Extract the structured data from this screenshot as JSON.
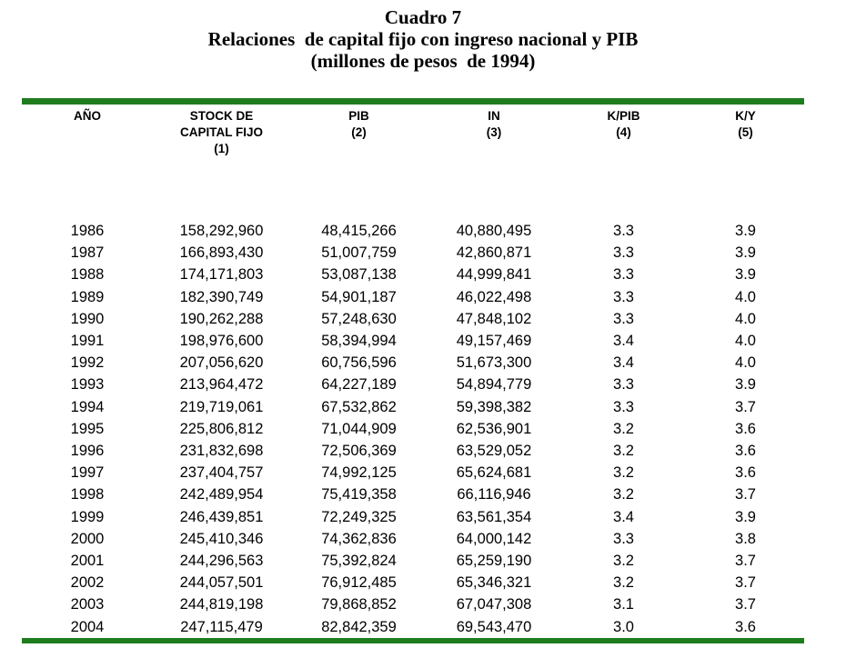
{
  "colors": {
    "rule_green": "#1e7c1e",
    "text": "#000000",
    "background": "#ffffff"
  },
  "title": {
    "caption": "Cuadro 7",
    "main": "Relaciones  de capital fijo con ingreso nacional y PIB",
    "subtitle": "(millones de pesos  de 1994)"
  },
  "table": {
    "columns": [
      {
        "key": "ano",
        "lines": [
          "AÑO"
        ]
      },
      {
        "key": "stock",
        "lines": [
          "STOCK DE",
          "CAPITAL FIJO",
          "(1)"
        ]
      },
      {
        "key": "pib",
        "lines": [
          "PIB",
          "(2)"
        ]
      },
      {
        "key": "in",
        "lines": [
          "IN",
          "(3)"
        ]
      },
      {
        "key": "kpib",
        "lines": [
          "K/PIB",
          "(4)"
        ]
      },
      {
        "key": "ky",
        "lines": [
          "K/Y",
          "(5)"
        ]
      }
    ],
    "rows": [
      [
        "1986",
        "158,292,960",
        "48,415,266",
        "40,880,495",
        "3.3",
        "3.9"
      ],
      [
        "1987",
        "166,893,430",
        "51,007,759",
        "42,860,871",
        "3.3",
        "3.9"
      ],
      [
        "1988",
        "174,171,803",
        "53,087,138",
        "44,999,841",
        "3.3",
        "3.9"
      ],
      [
        "1989",
        "182,390,749",
        "54,901,187",
        "46,022,498",
        "3.3",
        "4.0"
      ],
      [
        "1990",
        "190,262,288",
        "57,248,630",
        "47,848,102",
        "3.3",
        "4.0"
      ],
      [
        "1991",
        "198,976,600",
        "58,394,994",
        "49,157,469",
        "3.4",
        "4.0"
      ],
      [
        "1992",
        "207,056,620",
        "60,756,596",
        "51,673,300",
        "3.4",
        "4.0"
      ],
      [
        "1993",
        "213,964,472",
        "64,227,189",
        "54,894,779",
        "3.3",
        "3.9"
      ],
      [
        "1994",
        "219,719,061",
        "67,532,862",
        "59,398,382",
        "3.3",
        "3.7"
      ],
      [
        "1995",
        "225,806,812",
        "71,044,909",
        "62,536,901",
        "3.2",
        "3.6"
      ],
      [
        "1996",
        "231,832,698",
        "72,506,369",
        "63,529,052",
        "3.2",
        "3.6"
      ],
      [
        "1997",
        "237,404,757",
        "74,992,125",
        "65,624,681",
        "3.2",
        "3.6"
      ],
      [
        "1998",
        "242,489,954",
        "75,419,358",
        "66,116,946",
        "3.2",
        "3.7"
      ],
      [
        "1999",
        "246,439,851",
        "72,249,325",
        "63,561,354",
        "3.4",
        "3.9"
      ],
      [
        "2000",
        "245,410,346",
        "74,362,836",
        "64,000,142",
        "3.3",
        "3.8"
      ],
      [
        "2001",
        "244,296,563",
        "75,392,824",
        "65,259,190",
        "3.2",
        "3.7"
      ],
      [
        "2002",
        "244,057,501",
        "76,912,485",
        "65,346,321",
        "3.2",
        "3.7"
      ],
      [
        "2003",
        "244,819,198",
        "79,868,852",
        "67,047,308",
        "3.1",
        "3.7"
      ],
      [
        "2004",
        "247,115,479",
        "82,842,359",
        "69,543,470",
        "3.0",
        "3.6"
      ]
    ]
  }
}
